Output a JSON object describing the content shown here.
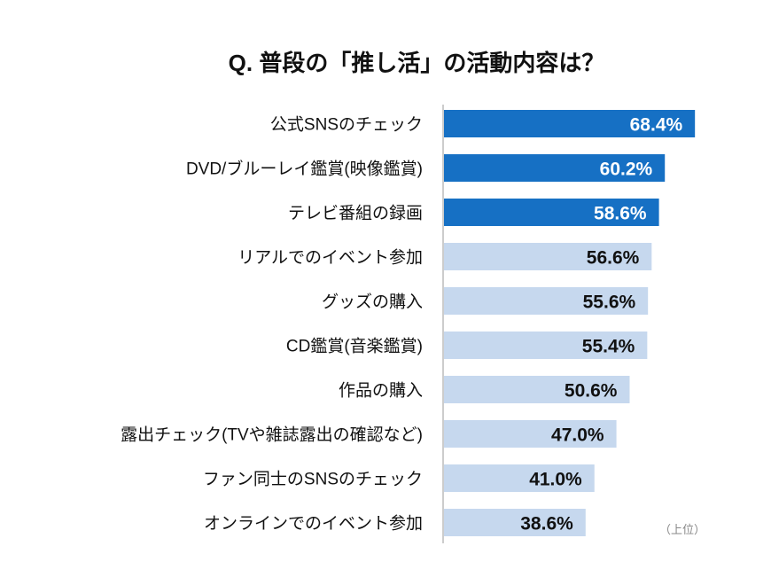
{
  "chart_data": {
    "type": "bar",
    "orientation": "horizontal",
    "title": "Q. 普段の「推し活」の活動内容は？",
    "categories": [
      "公式SNSのチェック",
      "DVD/ブルーレイ鑑賞(映像鑑賞)",
      "テレビ番組の録画",
      "リアルでのイベント参加",
      "グッズの購入",
      "CD鑑賞(音楽鑑賞)",
      "作品の購入",
      "露出チェック(TVや雑誌露出の確認など)",
      "ファン同士のSNSのチェック",
      "オンラインでのイベント参加"
    ],
    "values": [
      68.4,
      60.2,
      58.6,
      56.6,
      55.6,
      55.4,
      50.6,
      47.0,
      41.0,
      38.6
    ],
    "labels": [
      "68.4%",
      "60.2%",
      "58.6%",
      "56.6%",
      "55.6%",
      "55.4%",
      "50.6%",
      "47.0%",
      "41.0%",
      "38.6%"
    ],
    "highlight_top_n": 3,
    "note": "（上位）",
    "xlim": [
      0,
      100
    ],
    "grid": false,
    "colors": {
      "highlight": "#1670c4",
      "normal": "#c6d8ee",
      "highlight_text": "#ffffff",
      "normal_text": "#111111",
      "axis": "#cccccc"
    }
  }
}
